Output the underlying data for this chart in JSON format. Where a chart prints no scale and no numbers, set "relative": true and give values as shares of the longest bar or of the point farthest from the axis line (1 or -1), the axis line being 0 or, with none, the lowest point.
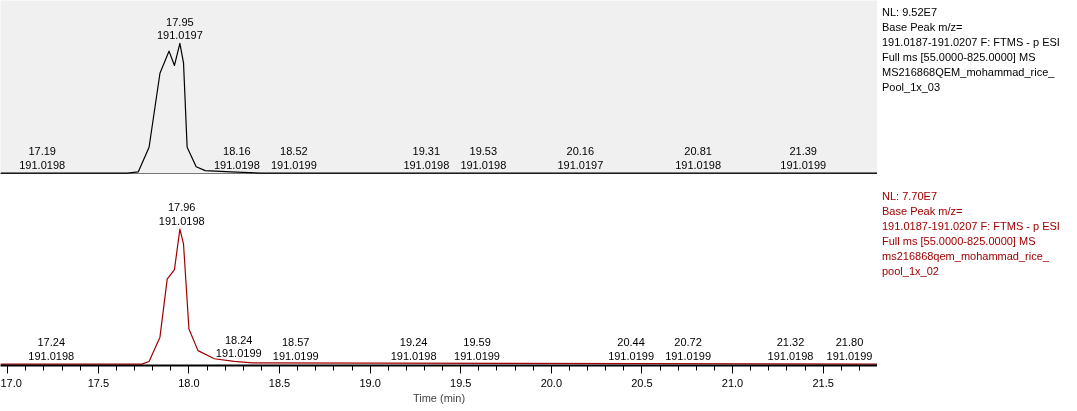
{
  "chart_data": [
    {
      "type": "line",
      "relative": true,
      "tick_labels": false,
      "xlim": [
        16.96,
        21.8
      ],
      "series": [
        {
          "color": "#000000",
          "x": [
            16.96,
            17.66,
            17.72,
            17.78,
            17.84,
            17.89,
            17.92,
            17.95,
            17.97,
            17.99,
            18.04,
            18.09,
            18.23,
            18.4,
            21.8
          ],
          "values": [
            0,
            0,
            0.01,
            0.2,
            0.77,
            0.94,
            0.83,
            1.0,
            0.85,
            0.2,
            0.05,
            0.02,
            0.01,
            0,
            0
          ]
        }
      ],
      "annotations": [
        {
          "text": "17.19\n191.0198",
          "x": 17.19,
          "y": 0
        },
        {
          "text": "17.95\n191.0197",
          "x": 17.95,
          "y": 1.0
        },
        {
          "text": "18.16\n191.0198",
          "x": 18.16,
          "y": 0
        },
        {
          "text": "18.52\n191.0199",
          "x": 18.52,
          "y": 0
        },
        {
          "text": "19.31\n191.0198",
          "x": 19.31,
          "y": 0
        },
        {
          "text": "19.53\n191.0198",
          "x": 19.53,
          "y": 0
        },
        {
          "text": "20.16\n191.0197",
          "x": 20.16,
          "y": 0
        },
        {
          "text": "20.81\n191.0198",
          "x": 20.81,
          "y": 0
        },
        {
          "text": "21.39\n191.0199",
          "x": 21.39,
          "y": 0
        },
        "NL: 9.52E7",
        "Base Peak m/z=\n191.0187-191.0207 F: FTMS - p ESI\nFull ms [55.0000-825.0000]  MS\nMS216868QEM_mohammad_rice_\nPool_1x_03"
      ]
    },
    {
      "type": "line",
      "relative": true,
      "xlabel": "Time (min)",
      "xlim": [
        16.96,
        21.8
      ],
      "xticks": [
        {
          "value": 17.0,
          "label": "17.0"
        },
        17.5,
        {
          "value": 18.0,
          "label": "18.0"
        },
        18.5,
        {
          "value": 19.0,
          "label": "19.0"
        },
        19.5,
        {
          "value": 20.0,
          "label": "20.0"
        },
        20.5,
        {
          "value": 21.0,
          "label": "21.0"
        },
        21.5
      ],
      "series": [
        {
          "color": "#a00000",
          "x": [
            16.96,
            17.74,
            17.78,
            17.84,
            17.88,
            17.92,
            17.95,
            17.97,
            18.0,
            18.05,
            18.14,
            18.25,
            18.35,
            21.8
          ],
          "values": [
            0,
            0,
            0.02,
            0.2,
            0.63,
            0.7,
            1.0,
            0.89,
            0.26,
            0.1,
            0.04,
            0.02,
            0.01,
            0
          ]
        }
      ],
      "annotations": [
        {
          "text": "17.24\n191.0198",
          "x": 17.24,
          "y": 0
        },
        {
          "text": "17.96\n191.0198",
          "x": 17.96,
          "y": 1.0
        },
        {
          "text": "18.24\n191.0199",
          "x": 18.24,
          "y": 0.02
        },
        {
          "text": "18.57\n191.0199",
          "x": 18.57,
          "y": 0
        },
        {
          "text": "19.24\n191.0198",
          "x": 19.24,
          "y": 0
        },
        {
          "text": "19.59\n191.0199",
          "x": 19.59,
          "y": 0
        },
        {
          "text": "20.44\n191.0199",
          "x": 20.44,
          "y": 0
        },
        {
          "text": "20.72\n191.0199",
          "x": 20.72,
          "y": 0
        },
        {
          "text": "21.32\n191.0198",
          "x": 21.32,
          "y": 0
        },
        {
          "text": "21.80\n191.0199",
          "x": 21.8,
          "y": 0
        },
        "NL: 7.70E7",
        "Base Peak m/z=\n191.0187-191.0207 F: FTMS - p ESI\nFull ms [55.0000-825.0000]  MS\nms216868qem_mohammad_rice_\npool_1x_02"
      ]
    }
  ]
}
